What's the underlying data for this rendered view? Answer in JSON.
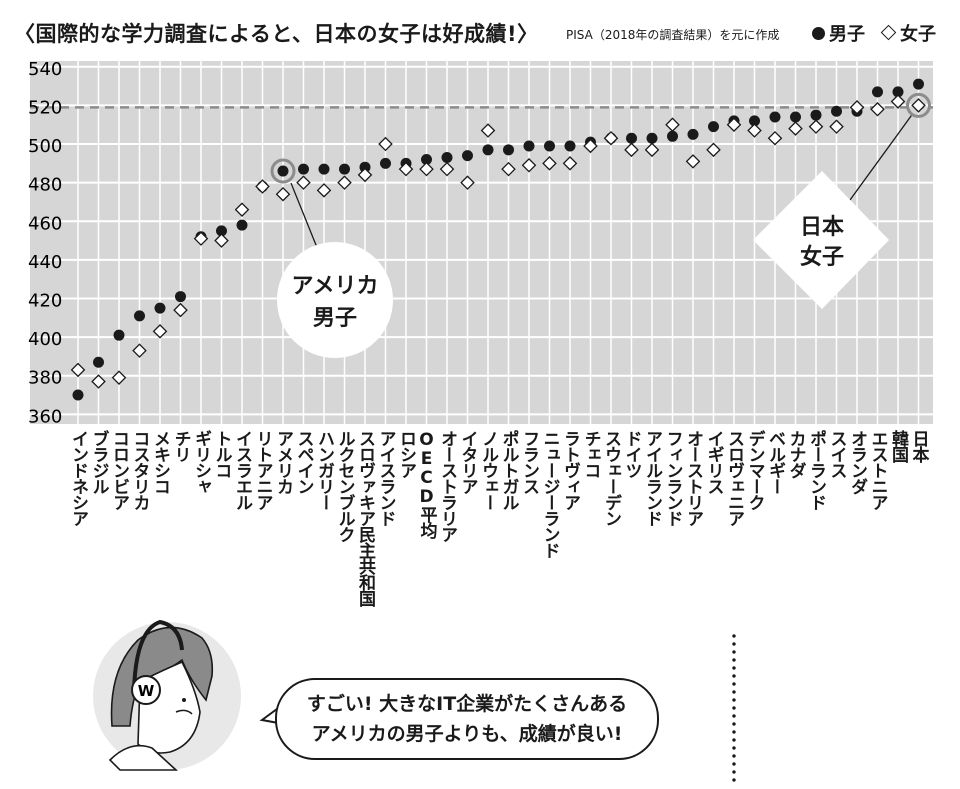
{
  "title": "〈国際的な学力調査によると、日本の女子は好成績!〉",
  "source": "PISA（2018年の調査結果）を元に作成",
  "legend": {
    "male": "男子",
    "female": "女子"
  },
  "colors": {
    "plot_bg": "#d6d6d6",
    "grid": "#ffffff",
    "marker": "#1a1a1a",
    "japan_line": "#8c8c8c"
  },
  "callouts": {
    "usa_male": [
      "アメリカ",
      "男子"
    ],
    "japan_female": [
      "日本",
      "女子"
    ]
  },
  "speech_bubble": [
    "すごい! 大きなIT企業がたくさんある",
    "アメリカの男子よりも、成績が良い!"
  ],
  "illustration": {
    "headphone_logo": "W"
  },
  "chart_data": {
    "type": "scatter",
    "ylim": [
      355,
      543
    ],
    "yticks": [
      540,
      520,
      500,
      480,
      460,
      440,
      420,
      400,
      380,
      360
    ],
    "grid": true,
    "legend_position": "top-right",
    "reference_line_value": 519,
    "categories": [
      "インドネシア",
      "ブラジル",
      "コロンビア",
      "コスタリカ",
      "メキシコ",
      "チリ",
      "ギリシャ",
      "トルコ",
      "イスラエル",
      "リトアニア",
      "アメリカ",
      "スペイン",
      "ハンガリー",
      "ルクセンブルク",
      "スロヴァキア民主共和国",
      "アイスランド",
      "ロシア",
      "OECD平均",
      "オーストラリア",
      "イタリア",
      "ノルウェー",
      "ポルトガル",
      "フランス",
      "ニュージーランド",
      "ラトヴィア",
      "チェコ",
      "スウェーデン",
      "ドイツ",
      "アイルランド",
      "フィンランド",
      "オーストリア",
      "イギリス",
      "スロヴェニア",
      "デンマーク",
      "ベルギー",
      "カナダ",
      "ポーランド",
      "スイス",
      "オランダ",
      "エストニア",
      "韓国",
      "日本"
    ],
    "series": [
      {
        "name": "男子",
        "marker": "dot",
        "values": [
          370,
          387,
          401,
          411,
          415,
          421,
          452,
          455,
          458,
          478,
          486,
          487,
          487,
          487,
          488,
          490,
          490,
          492,
          493,
          494,
          497,
          497,
          499,
          499,
          499,
          501,
          503,
          503,
          503,
          504,
          505,
          509,
          512,
          512,
          514,
          514,
          515,
          517,
          517,
          527,
          527,
          531
        ]
      },
      {
        "name": "女子",
        "marker": "diamond",
        "values": [
          383,
          377,
          379,
          393,
          403,
          414,
          451,
          450,
          466,
          478,
          474,
          480,
          476,
          480,
          484,
          500,
          487,
          487,
          487,
          480,
          507,
          487,
          489,
          490,
          490,
          499,
          503,
          497,
          497,
          510,
          491,
          497,
          510,
          507,
          503,
          508,
          509,
          509,
          519,
          518,
          522,
          520
        ]
      }
    ]
  }
}
